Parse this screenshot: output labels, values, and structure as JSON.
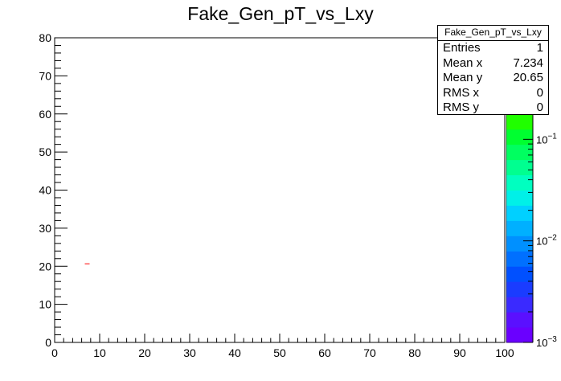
{
  "chart_data": {
    "type": "heatmap",
    "title": "Fake_Gen_pT_vs_Lxy",
    "xlabel": "",
    "ylabel": "",
    "xlim": [
      0,
      100
    ],
    "ylim": [
      0,
      80
    ],
    "x_ticks": [
      "0",
      "10",
      "20",
      "30",
      "40",
      "50",
      "60",
      "70",
      "80",
      "90",
      "100"
    ],
    "y_ticks": [
      "0",
      "10",
      "20",
      "30",
      "40",
      "50",
      "60",
      "70",
      "80"
    ],
    "z_scale": "log",
    "z_ticks": [
      "10^-3",
      "10^-2",
      "10^-1"
    ],
    "z_tick_display": [
      {
        "base": "10",
        "exp": "−3"
      },
      {
        "base": "10",
        "exp": "−2"
      },
      {
        "base": "10",
        "exp": "−1"
      }
    ],
    "points": [
      {
        "x": 7.234,
        "y": 20.65,
        "value": 1,
        "color": "#ff0000"
      }
    ],
    "palette": [
      "#6a00ff",
      "#5a10ff",
      "#3a2aff",
      "#1a3cff",
      "#0050ff",
      "#0070ff",
      "#0090ff",
      "#00b0ff",
      "#00d0ff",
      "#00f0e8",
      "#00ffc0",
      "#00ff90",
      "#00ff60",
      "#00ff30",
      "#20ff00",
      "#50ff00",
      "#80ff00",
      "#b0ff00",
      "#d8ff00",
      "#ffff00"
    ],
    "grid": false,
    "stats": {
      "name": "Fake_Gen_pT_vs_Lxy",
      "rows": [
        {
          "label": "Entries",
          "value": "1"
        },
        {
          "label": "Mean x",
          "value": "7.234"
        },
        {
          "label": "Mean y",
          "value": "20.65"
        },
        {
          "label": "RMS x",
          "value": "0"
        },
        {
          "label": "RMS y",
          "value": "0"
        }
      ]
    }
  }
}
